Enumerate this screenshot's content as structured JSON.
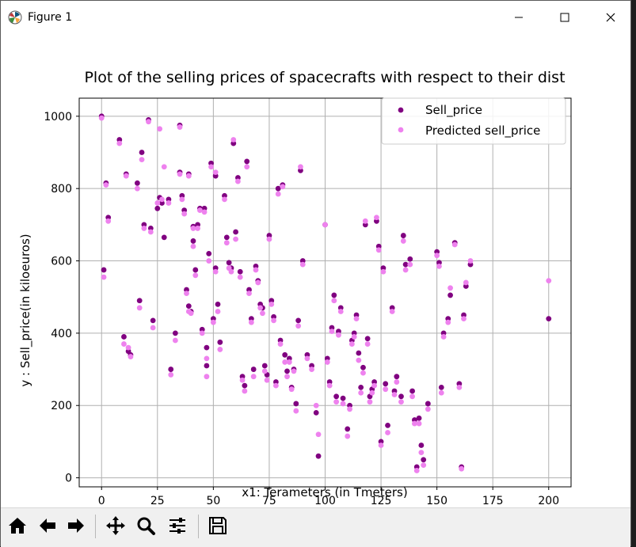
{
  "window": {
    "title": "Figure 1",
    "controls": [
      "minimize",
      "maximize",
      "close"
    ]
  },
  "colors": {
    "sell_price": "#800080",
    "predicted_sell_price": "#ee82ee",
    "grid": "#b0b0b0"
  },
  "toolbar": {
    "buttons": [
      "home-icon",
      "back-arrow-icon",
      "forward-arrow-icon",
      "pan-icon",
      "zoom-icon",
      "configure-subplots-icon",
      "save-icon"
    ]
  },
  "chart_data": {
    "type": "scatter",
    "title": "Plot of the selling prices of spacecrafts with respect to their dist",
    "xlabel": "x1: Terameters (in Tmeters)",
    "ylabel": "y : Sell_price(in kiloeuros)",
    "xlim": [
      -10,
      210
    ],
    "ylim": [
      -25,
      1050
    ],
    "xticks": [
      0,
      25,
      50,
      75,
      100,
      125,
      150,
      175,
      200
    ],
    "yticks": [
      0,
      200,
      400,
      600,
      800,
      1000
    ],
    "grid": true,
    "legend": {
      "position": "top-right",
      "entries": [
        "Sell_price",
        "Predicted sell_price"
      ]
    },
    "series": [
      {
        "name": "Sell_price",
        "x": [
          0,
          1,
          2,
          3,
          8,
          10,
          11,
          12,
          13,
          16,
          17,
          18,
          19,
          21,
          22,
          23,
          25,
          26,
          27,
          28,
          30,
          31,
          33,
          35,
          35,
          36,
          37,
          38,
          39,
          39,
          40,
          41,
          41,
          42,
          43,
          44,
          45,
          46,
          47,
          47,
          48,
          49,
          50,
          51,
          51,
          52,
          53,
          55,
          56,
          57,
          58,
          59,
          60,
          61,
          62,
          63,
          64,
          65,
          66,
          67,
          68,
          69,
          70,
          71,
          72,
          73,
          74,
          75,
          76,
          77,
          78,
          79,
          80,
          81,
          82,
          83,
          84,
          85,
          86,
          87,
          88,
          89,
          90,
          92,
          94,
          96,
          97,
          100,
          101,
          102,
          103,
          104,
          105,
          106,
          107,
          108,
          110,
          111,
          112,
          113,
          114,
          115,
          116,
          117,
          118,
          119,
          120,
          121,
          122,
          123,
          124,
          125,
          126,
          127,
          128,
          130,
          131,
          132,
          134,
          135,
          136,
          138,
          139,
          140,
          141,
          142,
          143,
          144,
          146,
          150,
          151,
          152,
          153,
          155,
          156,
          158,
          160,
          161,
          162,
          163,
          165,
          200
        ],
        "y": [
          1000,
          575,
          815,
          720,
          935,
          390,
          840,
          350,
          340,
          815,
          490,
          900,
          700,
          990,
          690,
          435,
          745,
          775,
          760,
          665,
          770,
          300,
          400,
          975,
          845,
          780,
          740,
          520,
          475,
          840,
          460,
          695,
          655,
          575,
          700,
          745,
          410,
          745,
          310,
          360,
          620,
          870,
          440,
          835,
          580,
          480,
          375,
          780,
          665,
          595,
          580,
          925,
          680,
          830,
          570,
          280,
          255,
          875,
          520,
          440,
          300,
          585,
          545,
          480,
          470,
          310,
          285,
          670,
          490,
          445,
          265,
          800,
          380,
          810,
          340,
          295,
          330,
          250,
          300,
          205,
          435,
          850,
          600,
          340,
          310,
          180,
          60,
          700,
          330,
          265,
          415,
          505,
          225,
          405,
          470,
          220,
          135,
          200,
          380,
          400,
          450,
          345,
          250,
          305,
          700,
          385,
          225,
          245,
          265,
          710,
          640,
          100,
          580,
          260,
          145,
          470,
          240,
          280,
          225,
          670,
          590,
          605,
          240,
          160,
          30,
          165,
          90,
          50,
          205,
          625,
          595,
          250,
          400,
          440,
          505,
          650,
          260,
          30,
          450,
          530,
          590,
          440
        ]
      },
      {
        "name": "Predicted sell_price",
        "x": [
          0,
          1,
          2,
          3,
          8,
          10,
          11,
          12,
          13,
          16,
          17,
          18,
          19,
          21,
          22,
          23,
          25,
          26,
          27,
          28,
          30,
          31,
          33,
          35,
          35,
          36,
          37,
          38,
          39,
          39,
          40,
          41,
          41,
          42,
          43,
          44,
          45,
          46,
          47,
          47,
          48,
          49,
          50,
          51,
          51,
          52,
          53,
          55,
          56,
          57,
          58,
          59,
          60,
          61,
          62,
          63,
          64,
          65,
          66,
          67,
          68,
          69,
          70,
          71,
          72,
          73,
          74,
          75,
          76,
          77,
          78,
          79,
          80,
          81,
          82,
          83,
          84,
          85,
          86,
          87,
          88,
          89,
          90,
          92,
          94,
          96,
          97,
          100,
          101,
          102,
          103,
          104,
          105,
          106,
          107,
          108,
          110,
          111,
          112,
          113,
          114,
          115,
          116,
          117,
          118,
          119,
          120,
          121,
          122,
          123,
          124,
          125,
          126,
          127,
          128,
          130,
          131,
          132,
          134,
          135,
          136,
          138,
          139,
          140,
          141,
          142,
          143,
          144,
          146,
          150,
          151,
          152,
          153,
          155,
          156,
          158,
          160,
          161,
          162,
          163,
          165,
          200
        ],
        "y": [
          995,
          555,
          810,
          710,
          925,
          370,
          835,
          360,
          335,
          800,
          470,
          880,
          690,
          985,
          680,
          415,
          760,
          965,
          770,
          860,
          760,
          285,
          380,
          970,
          840,
          770,
          730,
          510,
          460,
          835,
          455,
          690,
          640,
          560,
          690,
          740,
          400,
          735,
          280,
          330,
          600,
          860,
          430,
          845,
          570,
          460,
          355,
          770,
          650,
          580,
          570,
          935,
          660,
          820,
          555,
          270,
          240,
          860,
          510,
          430,
          280,
          575,
          540,
          470,
          455,
          295,
          270,
          660,
          480,
          435,
          255,
          785,
          370,
          805,
          320,
          280,
          320,
          245,
          295,
          185,
          420,
          860,
          590,
          330,
          300,
          200,
          120,
          700,
          320,
          255,
          405,
          490,
          210,
          395,
          460,
          205,
          115,
          190,
          370,
          390,
          440,
          325,
          235,
          290,
          710,
          370,
          210,
          235,
          255,
          720,
          630,
          90,
          570,
          245,
          125,
          460,
          230,
          265,
          210,
          655,
          575,
          590,
          225,
          150,
          20,
          150,
          70,
          35,
          190,
          615,
          585,
          235,
          390,
          430,
          525,
          645,
          250,
          25,
          440,
          540,
          600,
          545
        ]
      }
    ]
  }
}
